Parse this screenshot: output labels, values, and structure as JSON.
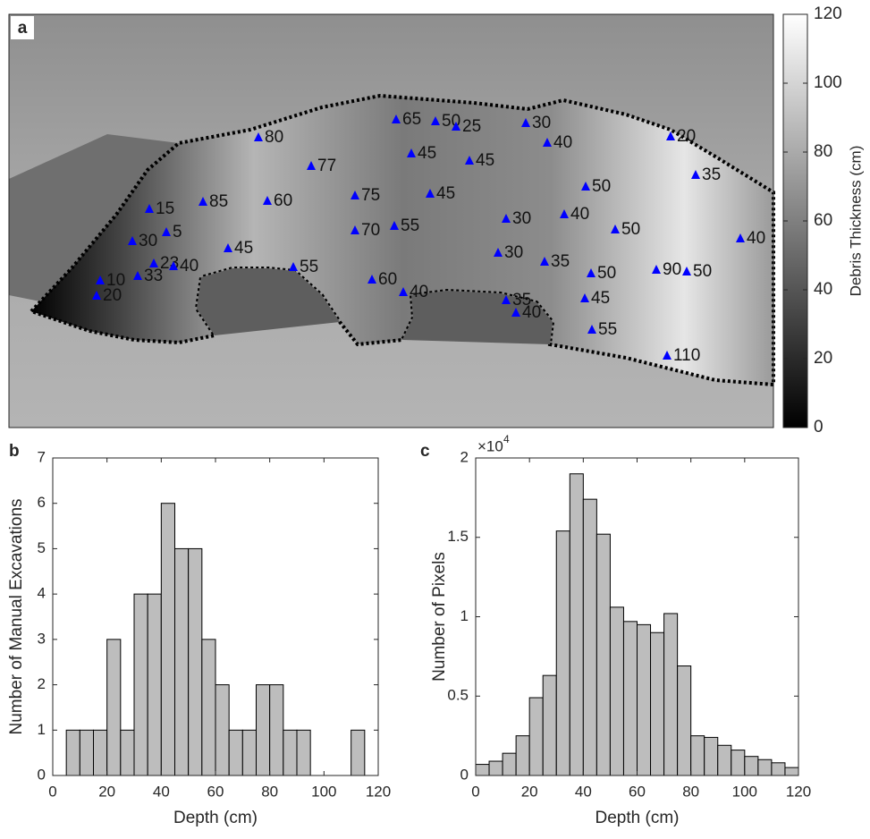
{
  "chart_data": [
    {
      "type": "map",
      "label": "a",
      "marker_color": "#0000ff",
      "values": [
        65,
        50,
        25,
        30,
        80,
        40,
        20,
        77,
        45,
        45,
        35,
        50,
        75,
        45,
        85,
        60,
        15,
        5,
        30,
        70,
        55,
        30,
        40,
        50,
        40,
        45,
        30,
        35,
        23,
        40,
        33,
        55,
        10,
        50,
        90,
        50,
        20,
        60,
        40,
        35,
        40,
        45,
        55,
        110
      ],
      "colorbar_label": "Debris Thickness (cm)",
      "clim": [
        0,
        120
      ],
      "cticks": [
        0,
        20,
        40,
        60,
        80,
        100,
        120
      ]
    },
    {
      "type": "histogram",
      "label": "b",
      "xlabel": "Depth (cm)",
      "ylabel": "Number of Manual Excavations",
      "color": "#bdbdbd",
      "bins": [
        5,
        10,
        15,
        20,
        25,
        30,
        35,
        40,
        45,
        50,
        55,
        60,
        65,
        70,
        75,
        80,
        85,
        90,
        95,
        100,
        105,
        110,
        115
      ],
      "values": [
        1,
        1,
        1,
        3,
        1,
        4,
        4,
        6,
        5,
        5,
        3,
        2,
        1,
        1,
        2,
        2,
        1,
        1,
        0,
        0,
        0,
        1
      ],
      "xlim": [
        0,
        120
      ],
      "xticks": [
        0,
        20,
        40,
        60,
        80,
        100,
        120
      ],
      "ylim": [
        0,
        7
      ],
      "yticks": [
        0,
        1,
        2,
        3,
        4,
        5,
        6,
        7
      ]
    },
    {
      "type": "histogram",
      "label": "c",
      "xlabel": "Depth (cm)",
      "ylabel": "Number of Pixels",
      "color": "#bdbdbd",
      "y_multiplier": "×10",
      "y_multiplier_exponent": "4",
      "bins": [
        0,
        5,
        10,
        15,
        20,
        25,
        30,
        35,
        40,
        45,
        50,
        55,
        60,
        65,
        70,
        75,
        80,
        85,
        90,
        95,
        100,
        105,
        110,
        115,
        120
      ],
      "values": [
        0.07,
        0.09,
        0.14,
        0.25,
        0.49,
        0.63,
        1.54,
        1.9,
        1.74,
        1.52,
        1.06,
        0.97,
        0.95,
        0.9,
        1.02,
        0.69,
        0.25,
        0.24,
        0.19,
        0.16,
        0.12,
        0.1,
        0.08,
        0.05
      ],
      "xlim": [
        0,
        120
      ],
      "xticks": [
        0,
        20,
        40,
        60,
        80,
        100,
        120
      ],
      "ylim": [
        0,
        2
      ],
      "yticks": [
        0,
        0.5,
        1,
        1.5,
        2
      ]
    }
  ]
}
